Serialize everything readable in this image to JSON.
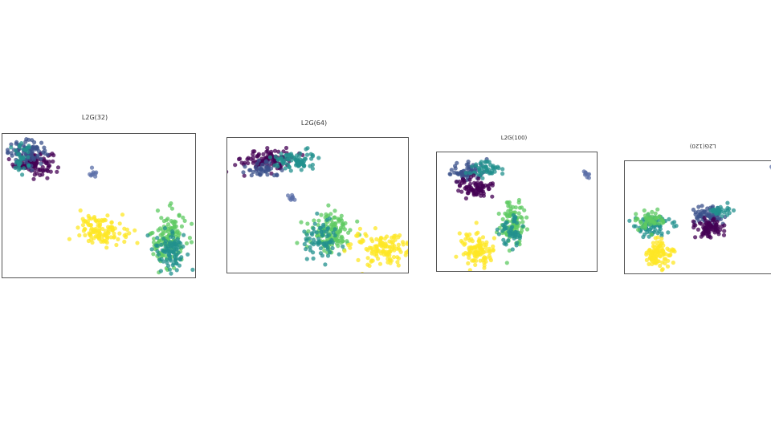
{
  "palette": {
    "deep-purple": "#440154",
    "indigo": "#3b528b",
    "slate-blue": "#5b6fa8",
    "teal": "#21908d",
    "green": "#5ec962",
    "yellow": "#fde725"
  },
  "chart_data": [
    {
      "type": "scatter",
      "title": "L2G(32)",
      "series": [
        {
          "color": "deep-purple",
          "center": [
            0.16,
            0.8
          ],
          "spread": [
            0.05,
            0.04
          ],
          "count": 110
        },
        {
          "color": "indigo",
          "center": [
            0.13,
            0.87
          ],
          "spread": [
            0.05,
            0.04
          ],
          "count": 90
        },
        {
          "color": "teal",
          "center": [
            0.1,
            0.83
          ],
          "spread": [
            0.03,
            0.05
          ],
          "count": 35
        },
        {
          "color": "slate-blue",
          "center": [
            0.47,
            0.72
          ],
          "spread": [
            0.01,
            0.015
          ],
          "count": 9
        },
        {
          "color": "yellow",
          "center": [
            0.52,
            0.33
          ],
          "spread": [
            0.06,
            0.05
          ],
          "count": 120
        },
        {
          "color": "green",
          "center": [
            0.86,
            0.26
          ],
          "spread": [
            0.045,
            0.1
          ],
          "count": 130
        },
        {
          "color": "teal",
          "center": [
            0.87,
            0.2
          ],
          "spread": [
            0.04,
            0.07
          ],
          "count": 90
        }
      ]
    },
    {
      "type": "scatter",
      "title": "L2G(64)",
      "series": [
        {
          "color": "deep-purple",
          "center": [
            0.22,
            0.84
          ],
          "spread": [
            0.07,
            0.04
          ],
          "count": 110
        },
        {
          "color": "teal",
          "center": [
            0.37,
            0.83
          ],
          "spread": [
            0.06,
            0.035
          ],
          "count": 80
        },
        {
          "color": "indigo",
          "center": [
            0.2,
            0.77
          ],
          "spread": [
            0.05,
            0.03
          ],
          "count": 40
        },
        {
          "color": "slate-blue",
          "center": [
            0.35,
            0.55
          ],
          "spread": [
            0.015,
            0.015
          ],
          "count": 9
        },
        {
          "color": "green",
          "center": [
            0.57,
            0.3
          ],
          "spread": [
            0.06,
            0.08
          ],
          "count": 130
        },
        {
          "color": "teal",
          "center": [
            0.52,
            0.25
          ],
          "spread": [
            0.05,
            0.06
          ],
          "count": 70
        },
        {
          "color": "yellow",
          "center": [
            0.84,
            0.18
          ],
          "spread": [
            0.08,
            0.06
          ],
          "count": 130
        }
      ]
    },
    {
      "type": "scatter",
      "title": "L2G(100)",
      "series": [
        {
          "color": "indigo",
          "center": [
            0.2,
            0.84
          ],
          "spread": [
            0.06,
            0.04
          ],
          "count": 70
        },
        {
          "color": "teal",
          "center": [
            0.3,
            0.85
          ],
          "spread": [
            0.05,
            0.04
          ],
          "count": 50
        },
        {
          "color": "deep-purple",
          "center": [
            0.24,
            0.7
          ],
          "spread": [
            0.055,
            0.04
          ],
          "count": 80
        },
        {
          "color": "slate-blue",
          "center": [
            0.935,
            0.81
          ],
          "spread": [
            0.01,
            0.015
          ],
          "count": 9
        },
        {
          "color": "green",
          "center": [
            0.48,
            0.4
          ],
          "spread": [
            0.04,
            0.1
          ],
          "count": 100
        },
        {
          "color": "teal",
          "center": [
            0.46,
            0.33
          ],
          "spread": [
            0.035,
            0.07
          ],
          "count": 50
        },
        {
          "color": "yellow",
          "center": [
            0.25,
            0.18
          ],
          "spread": [
            0.05,
            0.07
          ],
          "count": 110
        }
      ]
    },
    {
      "type": "scatter",
      "title": "L2G(120)",
      "title_orientation": "upside-down",
      "series": [
        {
          "color": "teal",
          "center": [
            0.17,
            0.42
          ],
          "spread": [
            0.06,
            0.05
          ],
          "count": 90
        },
        {
          "color": "green",
          "center": [
            0.17,
            0.48
          ],
          "spread": [
            0.05,
            0.04
          ],
          "count": 50
        },
        {
          "color": "yellow",
          "center": [
            0.22,
            0.17
          ],
          "spread": [
            0.04,
            0.06
          ],
          "count": 100
        },
        {
          "color": "indigo",
          "center": [
            0.55,
            0.52
          ],
          "spread": [
            0.05,
            0.04
          ],
          "count": 70
        },
        {
          "color": "teal",
          "center": [
            0.62,
            0.55
          ],
          "spread": [
            0.04,
            0.035
          ],
          "count": 30
        },
        {
          "color": "deep-purple",
          "center": [
            0.56,
            0.4
          ],
          "spread": [
            0.045,
            0.04
          ],
          "count": 80
        },
        {
          "color": "slate-blue",
          "center": [
            0.98,
            0.93
          ],
          "spread": [
            0.01,
            0.015
          ],
          "count": 9
        }
      ]
    }
  ]
}
